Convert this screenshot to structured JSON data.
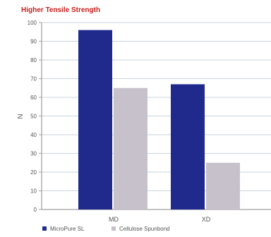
{
  "chart_data": {
    "type": "bar",
    "title": "Higher Tensile Strength",
    "xlabel": "",
    "ylabel": "N",
    "categories": [
      "MD",
      "XD"
    ],
    "series": [
      {
        "name": "MicroPure SL",
        "color": "#1f2a8c",
        "values": [
          96,
          67
        ]
      },
      {
        "name": "Cellulose Spunbond",
        "color": "#c7c1cc",
        "values": [
          65,
          25
        ]
      }
    ],
    "ylim": [
      0,
      100
    ],
    "yticks": [
      0,
      10,
      20,
      30,
      40,
      50,
      60,
      70,
      80,
      90,
      100
    ],
    "grid": true,
    "legend_position": "bottom-left"
  }
}
